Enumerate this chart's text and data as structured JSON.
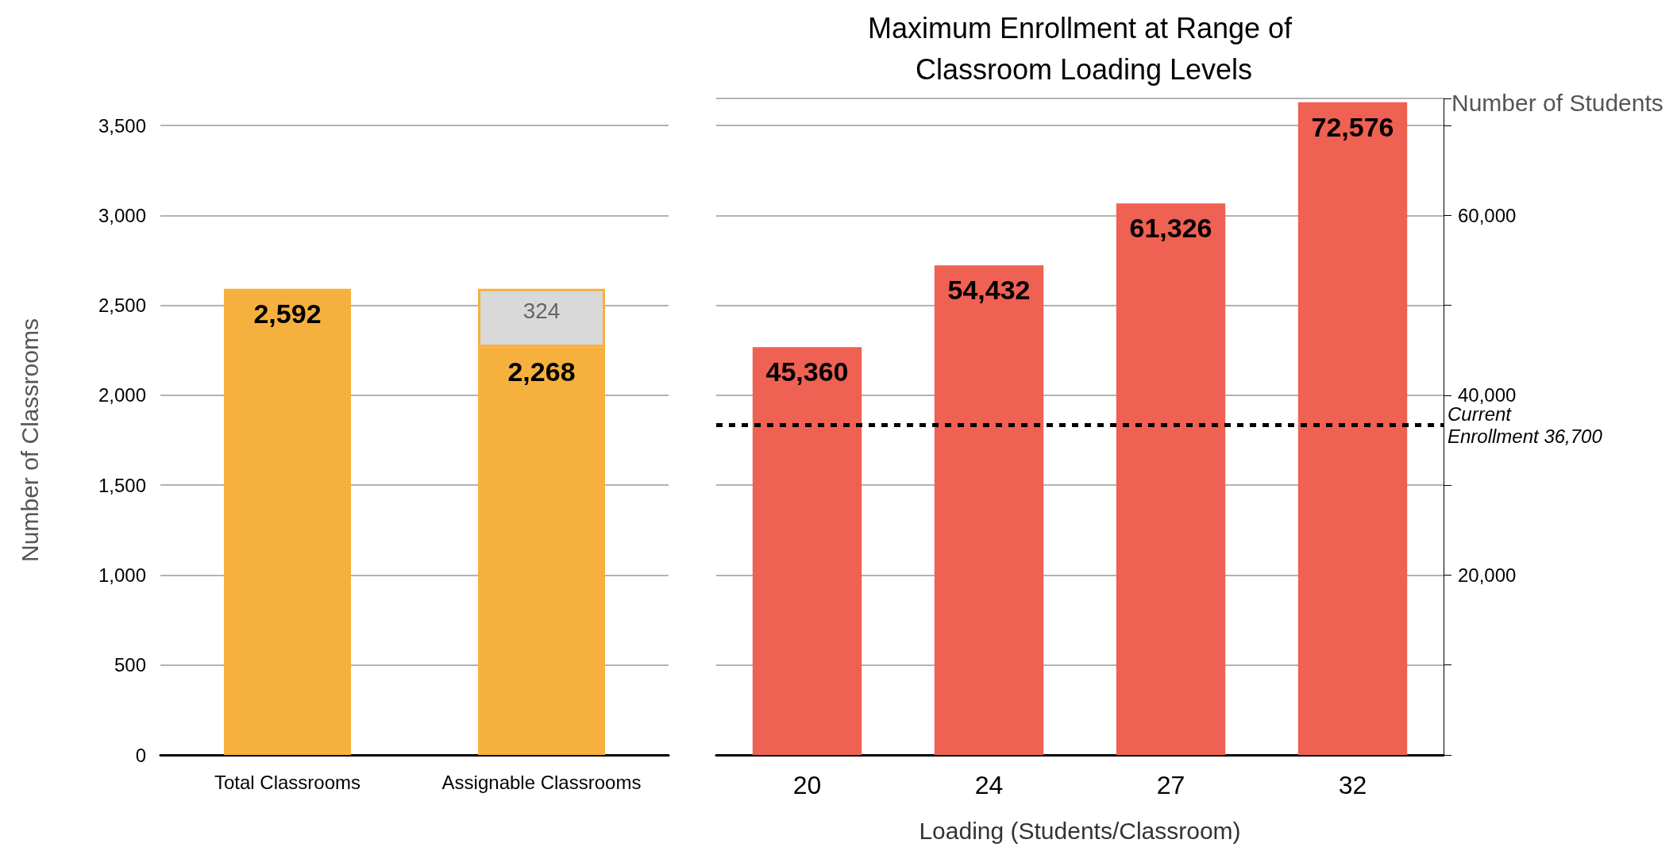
{
  "chart_data": [
    {
      "type": "bar",
      "ylabel": "Number of Classrooms",
      "categories": [
        "Total Classrooms",
        "Assignable Classrooms"
      ],
      "stacked": true,
      "series": [
        {
          "color": "#f6b03e",
          "values": [
            2592,
            2268
          ],
          "value_labels": [
            "2,592",
            "2,268"
          ]
        },
        {
          "color": "#d9d9d9",
          "values": [
            null,
            324
          ],
          "value_labels": [
            null,
            "324"
          ]
        }
      ],
      "ylim": [
        0,
        3500
      ],
      "yticks": [
        0,
        500,
        {
          "value": 1000,
          "label": "1,000"
        },
        {
          "value": 1500,
          "label": "1,500"
        },
        {
          "value": 2000,
          "label": "2,000"
        },
        {
          "value": 2500,
          "label": "2,500"
        },
        {
          "value": 3000,
          "label": "3,000"
        },
        {
          "value": 3500,
          "label": "3,500"
        }
      ],
      "grid": "y"
    },
    {
      "type": "bar",
      "title": "Maximum Enrollment at Range of Classroom Loading Levels",
      "xlabel": "Loading (Students/Classroom)",
      "y2label": "Number of Students",
      "categories": [
        "20",
        "24",
        "27",
        "32"
      ],
      "series": [
        {
          "color": "#ef6152",
          "values": [
            45360,
            54432,
            61326,
            72576
          ],
          "value_labels": [
            "45,360",
            "54,432",
            "61,326",
            "72,576"
          ],
          "axis": "y2"
        }
      ],
      "y2lim": [
        0,
        73000
      ],
      "y2ticks": [
        {
          "value": 10000,
          "label": null
        },
        {
          "value": 20000,
          "label": "20,000"
        },
        {
          "value": 30000,
          "label": null
        },
        {
          "value": 40000,
          "label": "40,000"
        },
        {
          "value": 50000,
          "label": null
        },
        {
          "value": 60000,
          "label": "60,000"
        },
        {
          "value": 70000,
          "label": null
        }
      ],
      "ref_lines": [
        {
          "axis": "y2",
          "value": 36700,
          "label": "Current Enrollment 36,700",
          "color": "#000000",
          "line_style": "dashed"
        }
      ],
      "grid": "y"
    }
  ]
}
